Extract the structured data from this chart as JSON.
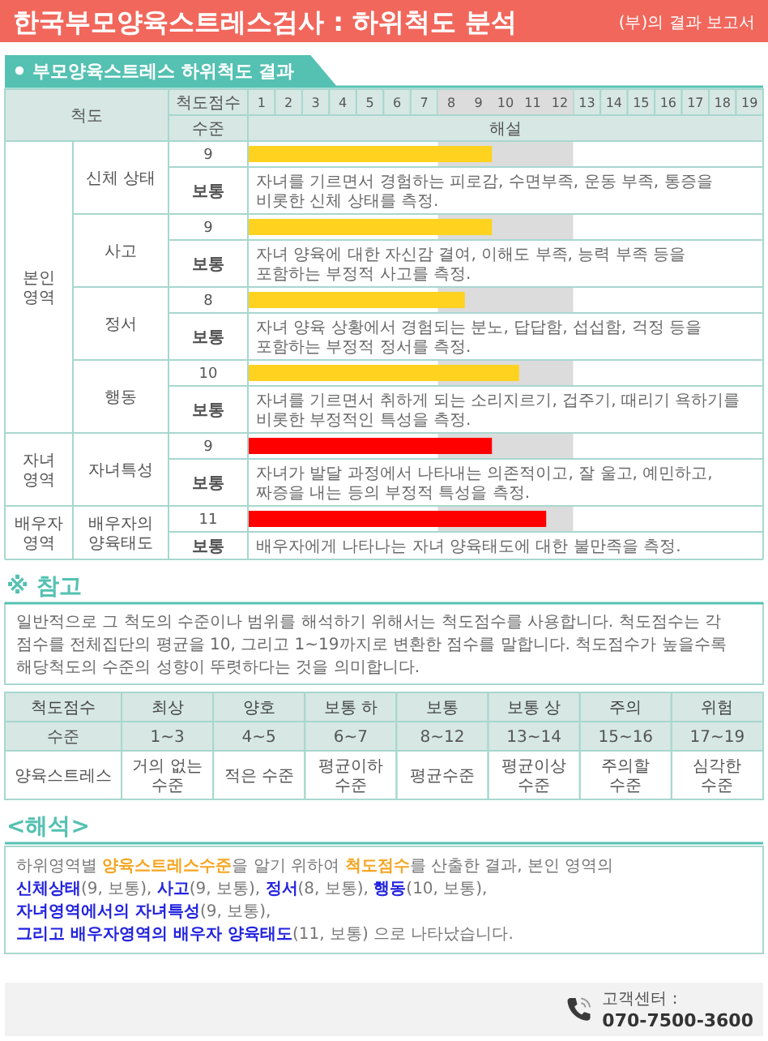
{
  "chart_data": [
    {
      "type": "bar",
      "orientation": "horizontal",
      "title": "한국부모양육스트레스검사 : 하위척도 분석",
      "subtitle": "부모양육스트레스 하위척도 결과",
      "xlabel": "척도점수",
      "ylabel": "척도",
      "categories": [
        "신체 상태",
        "사고",
        "정서",
        "행동",
        "자녀특성",
        "배우자의 양육태도"
      ],
      "values": [
        9,
        9,
        8,
        10,
        9,
        11
      ],
      "colors": [
        "#ffd21f",
        "#ffd21f",
        "#ffd21f",
        "#ffd21f",
        "#ff0000",
        "#ff0000"
      ],
      "xlim": [
        0,
        19
      ],
      "xticks": [
        {
          "value": 0.5,
          "label": "1"
        },
        {
          "value": 1.5,
          "label": "2"
        },
        {
          "value": 2.5,
          "label": "3"
        },
        {
          "value": 3.5,
          "label": "4"
        },
        {
          "value": 4.5,
          "label": "5"
        },
        {
          "value": 5.5,
          "label": "6"
        },
        {
          "value": 6.5,
          "label": "7"
        },
        {
          "value": 7.5,
          "label": "8"
        },
        {
          "value": 8.5,
          "label": "9"
        },
        {
          "value": 9.5,
          "label": "10"
        },
        {
          "value": 10.5,
          "label": "11"
        },
        {
          "value": 11.5,
          "label": "12"
        },
        {
          "value": 12.5,
          "label": "13"
        },
        {
          "value": 13.5,
          "label": "14"
        },
        {
          "value": 14.5,
          "label": "15"
        },
        {
          "value": 15.5,
          "label": "16"
        },
        {
          "value": 16.5,
          "label": "17"
        },
        {
          "value": 17.5,
          "label": "18"
        },
        {
          "value": 18.5,
          "label": "19"
        }
      ],
      "bands": [
        {
          "axis": "x",
          "from": 7,
          "to": 12,
          "color": "#dcdcdc"
        }
      ],
      "data_labels": true,
      "annotations": [
        "(부)의 결과 보고서",
        "수준",
        "해설",
        "보통",
        "자녀를 기르면서 경험하는 피로감, 수면부족, 운동 부족, 통증을 비롯한 신체 상태를 측정.",
        "보통",
        "자녀 양육에 대한 자신감 결여, 이해도 부족, 능력 부족 등을 포함하는 부정적 사고를 측정.",
        "보통",
        "자녀 양육 상황에서 경험되는 분노, 답답함, 섭섭함, 걱정 등을 포함하는 부정적 정서를 측정.",
        "보통",
        "자녀를 기르면서 취하게 되는 소리지르기, 겁주기, 때리기 욕하기를 비롯한 부정적인 특성을 측정.",
        "보통",
        "자녀가 발달 과정에서 나타내는 의존적이고, 잘 울고, 예민하고, 짜증을 내는 등의 부정적 특성을 측정.",
        "보통",
        "배우자에게 나타나는 자녀 양육태도에 대한 불만족을 측정.",
        "본인 영역",
        "자녀 영역",
        "배우자 영역"
      ]
    },
    {
      "type": "other",
      "title": "※ 참고",
      "annotations": [
        "일반적으로 그 척도의 수준이나 범위를 해석하기 위해서는 척도점수를 사용합니다. 척도점수는 각 점수를 전체집단의 평균을 10, 그리고 1~19까지로 변환한 점수를 말합니다. 척도점수가 높을수록 해당척도의 수준의 성향이 뚜렷하다는 것을 의미합니다.",
        "척도점수",
        "최상",
        "양호",
        "보통 하",
        "보통",
        "보통 상",
        "주의",
        "위험",
        "수준",
        "1~3",
        "4~5",
        "6~7",
        "8~12",
        "13~14",
        "15~16",
        "17~19",
        "양육스트레스",
        "거의 없는 수준",
        "적은 수준",
        "평균이하 수준",
        "평균수준",
        "평균이상 수준",
        "주의할 수준",
        "심각한 수준"
      ]
    },
    {
      "type": "other",
      "title": "<해석>",
      "annotations": [
        "하위영역별 ",
        "양육스트레스수준",
        "을 알기 위하여 ",
        "척도점수",
        "를 산출한 결과, 본인 영역의 ",
        "신체상태",
        "(9, 보통), ",
        "사고",
        "(9, 보통), ",
        "정서",
        "(8, 보통), ",
        "행동",
        "(10, 보통), ",
        "자녀영역에서의 자녀특성",
        "(9, 보통), ",
        "그리고 배우자영역의 배우자 양육태도",
        "(11, 보통) 으로 나타났습니다."
      ],
      "colors": [
        "#777777",
        "#f5a623",
        "#777777",
        "#f5a623",
        "#777777",
        "#2424e0",
        "#777777",
        "#2424e0",
        "#777777",
        "#2424e0",
        "#777777",
        "#2424e0",
        "#777777",
        "#2424e0",
        "#777777",
        "#2424e0",
        "#777777"
      ]
    },
    {
      "type": "other",
      "annotations": [
        "고객센터 :",
        "070-7500-3600"
      ]
    }
  ]
}
